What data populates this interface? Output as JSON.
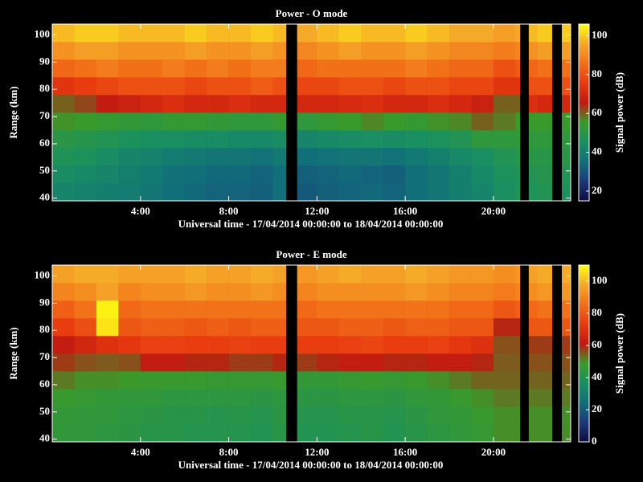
{
  "chart_data": [
    {
      "type": "heatmap",
      "title": "Power - O mode",
      "xlabel": "Universal time - 17/04/2014 00:00:00 to 18/04/2014 00:00:00",
      "ylabel": "Range (km)",
      "colorbar_label": "Signal power (dB)",
      "x": [
        0,
        1,
        2,
        3,
        4,
        5,
        6,
        7,
        8,
        9,
        10,
        10.6,
        11.1,
        12,
        13,
        14,
        15,
        16,
        17,
        18,
        19,
        20,
        21,
        21.2,
        21.6,
        22,
        22.65,
        23.1,
        23.5
      ],
      "y": [
        39,
        45.5,
        52,
        58.5,
        65,
        71.5,
        78,
        84.5,
        91,
        97.5,
        104
      ],
      "z": [
        [
          42,
          41,
          40,
          39,
          37,
          35,
          34,
          33,
          33,
          32,
          35,
          null,
          31,
          32,
          33,
          34,
          33,
          35,
          37,
          40,
          42,
          45,
          48,
          null,
          47,
          48,
          null,
          46
        ],
        [
          44,
          43,
          42,
          40,
          38,
          36,
          35,
          34,
          34,
          33,
          35,
          null,
          32,
          33,
          34,
          33,
          32,
          35,
          37,
          40,
          43,
          46,
          48,
          null,
          48,
          49,
          null,
          48
        ],
        [
          47,
          46,
          44,
          42,
          41,
          39,
          38,
          37,
          37,
          36,
          38,
          null,
          35,
          36,
          37,
          37,
          36,
          38,
          40,
          43,
          45,
          48,
          50,
          null,
          50,
          50,
          null,
          50
        ],
        [
          50,
          49,
          48,
          46,
          45,
          45,
          44,
          44,
          43,
          43,
          44,
          null,
          42,
          43,
          44,
          45,
          44,
          45,
          46,
          48,
          52,
          52,
          52,
          null,
          52,
          52,
          null,
          52
        ],
        [
          56,
          55,
          54,
          53,
          52,
          54,
          54,
          53,
          52,
          52,
          54,
          null,
          52,
          54,
          55,
          57,
          55,
          54,
          56,
          57,
          60,
          58,
          55,
          null,
          55,
          55,
          null,
          55
        ],
        [
          60,
          62,
          66,
          68,
          70,
          72,
          70,
          70,
          72,
          70,
          70,
          null,
          70,
          70,
          71,
          72,
          70,
          70,
          72,
          70,
          68,
          60,
          60,
          null,
          72,
          70,
          null,
          70
        ],
        [
          74,
          76,
          78,
          80,
          80,
          80,
          78,
          80,
          80,
          82,
          80,
          null,
          78,
          78,
          80,
          80,
          78,
          80,
          80,
          78,
          78,
          74,
          74,
          null,
          80,
          80,
          null,
          80
        ],
        [
          84,
          86,
          88,
          86,
          86,
          88,
          86,
          88,
          86,
          88,
          88,
          null,
          84,
          86,
          86,
          86,
          86,
          88,
          86,
          84,
          84,
          80,
          82,
          null,
          84,
          86,
          null,
          86
        ],
        [
          92,
          94,
          94,
          92,
          92,
          92,
          94,
          92,
          92,
          94,
          92,
          null,
          90,
          92,
          94,
          92,
          92,
          94,
          92,
          90,
          90,
          88,
          90,
          null,
          92,
          94,
          null,
          94
        ],
        [
          98,
          100,
          100,
          98,
          98,
          98,
          100,
          98,
          98,
          100,
          98,
          null,
          96,
          98,
          100,
          98,
          98,
          100,
          98,
          96,
          96,
          94,
          96,
          null,
          98,
          100,
          null,
          100
        ]
      ],
      "xlim": [
        0,
        23.5
      ],
      "ylim": [
        39,
        104
      ],
      "xticks": [
        {
          "value": 4,
          "label": "4:00"
        },
        {
          "value": 8,
          "label": "8:00"
        },
        {
          "value": 12,
          "label": "12:00"
        },
        {
          "value": 16,
          "label": "16:00"
        },
        {
          "value": 20,
          "label": "20:00"
        }
      ],
      "yticks": [
        40,
        50,
        60,
        70,
        80,
        90,
        100
      ],
      "zlim": [
        15,
        106
      ],
      "zticks": [
        20,
        40,
        60,
        80,
        100
      ],
      "colormap": [
        "#0c0c40",
        "#1b3a7a",
        "#11707a",
        "#1a9060",
        "#3a9a2a",
        "#c01a10",
        "#e83a10",
        "#f27018",
        "#f5a828",
        "#ffff10"
      ]
    },
    {
      "type": "heatmap",
      "title": "Power - E mode",
      "xlabel": "Universal time - 17/04/2014 00:00:00 to 18/04/2014 00:00:00",
      "ylabel": "Range (km)",
      "colorbar_label": "Signal power (dB)",
      "x": [
        0,
        1,
        2,
        3,
        4,
        5,
        6,
        7,
        8,
        9,
        10,
        10.6,
        11.1,
        12,
        13,
        14,
        15,
        16,
        17,
        18,
        19,
        20,
        21,
        21.2,
        21.6,
        22,
        22.65,
        23.1,
        23.5
      ],
      "y": [
        39,
        45.5,
        52,
        58.5,
        65,
        71.5,
        78,
        84.5,
        91,
        97.5,
        104
      ],
      "z": [
        [
          45,
          45,
          44,
          43,
          42,
          42,
          41,
          41,
          41,
          40,
          42,
          null,
          40,
          40,
          41,
          42,
          40,
          42,
          44,
          45,
          47,
          50,
          50,
          null,
          50,
          50,
          null,
          50
        ],
        [
          46,
          45,
          45,
          44,
          43,
          42,
          42,
          41,
          42,
          41,
          43,
          null,
          41,
          41,
          42,
          42,
          41,
          43,
          45,
          46,
          48,
          50,
          50,
          null,
          50,
          50,
          null,
          50
        ],
        [
          48,
          47,
          46,
          45,
          45,
          44,
          44,
          44,
          44,
          43,
          44,
          null,
          43,
          43,
          44,
          44,
          43,
          45,
          46,
          48,
          50,
          52,
          52,
          null,
          52,
          52,
          null,
          52
        ],
        [
          52,
          50,
          50,
          49,
          48,
          48,
          48,
          47,
          47,
          47,
          48,
          null,
          46,
          46,
          47,
          48,
          47,
          48,
          50,
          52,
          54,
          54,
          54,
          null,
          54,
          54,
          null,
          54
        ],
        [
          58,
          56,
          55,
          56,
          62,
          62,
          60,
          60,
          58,
          58,
          60,
          null,
          58,
          60,
          62,
          62,
          60,
          60,
          62,
          62,
          60,
          55,
          55,
          null,
          56,
          56,
          null,
          56
        ],
        [
          62,
          66,
          70,
          72,
          75,
          75,
          74,
          74,
          75,
          74,
          74,
          null,
          74,
          74,
          75,
          76,
          74,
          74,
          75,
          72,
          70,
          56,
          56,
          null,
          58,
          58,
          null,
          58
        ],
        [
          74,
          78,
          106,
          80,
          82,
          82,
          80,
          82,
          80,
          82,
          82,
          null,
          80,
          80,
          82,
          82,
          80,
          82,
          82,
          80,
          80,
          60,
          60,
          null,
          80,
          80,
          null,
          80
        ],
        [
          82,
          86,
          108,
          84,
          86,
          86,
          86,
          86,
          86,
          86,
          86,
          null,
          84,
          86,
          86,
          86,
          86,
          86,
          86,
          84,
          84,
          80,
          82,
          null,
          84,
          86,
          null,
          86
        ],
        [
          90,
          92,
          96,
          90,
          92,
          92,
          94,
          92,
          92,
          94,
          92,
          null,
          90,
          92,
          92,
          92,
          92,
          94,
          92,
          90,
          90,
          88,
          90,
          null,
          92,
          94,
          null,
          94
        ],
        [
          96,
          98,
          98,
          96,
          96,
          96,
          98,
          96,
          96,
          98,
          96,
          null,
          94,
          96,
          98,
          96,
          96,
          98,
          96,
          94,
          94,
          92,
          94,
          null,
          96,
          98,
          null,
          98
        ]
      ],
      "xlim": [
        0,
        23.5
      ],
      "ylim": [
        39,
        104
      ],
      "xticks": [
        {
          "value": 4,
          "label": "4:00"
        },
        {
          "value": 8,
          "label": "8:00"
        },
        {
          "value": 12,
          "label": "12:00"
        },
        {
          "value": 16,
          "label": "16:00"
        },
        {
          "value": 20,
          "label": "20:00"
        }
      ],
      "yticks": [
        40,
        50,
        60,
        70,
        80,
        90,
        100
      ],
      "zlim": [
        0,
        110
      ],
      "zticks": [
        0,
        20,
        40,
        60,
        80,
        100
      ],
      "colormap": [
        "#0c0c40",
        "#1b3a7a",
        "#11707a",
        "#1a9060",
        "#3a9a2a",
        "#c01a10",
        "#e83a10",
        "#f27018",
        "#f5a828",
        "#ffff10"
      ]
    }
  ]
}
